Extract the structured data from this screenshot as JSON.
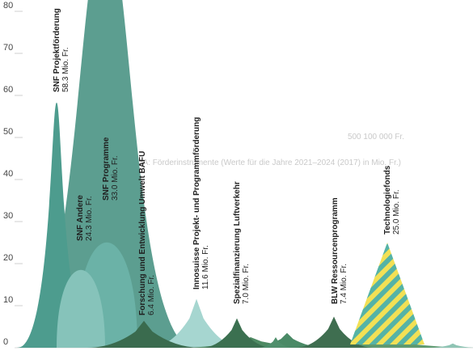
{
  "chart_data": {
    "type": "area",
    "title": "",
    "xlabel": "",
    "ylabel": "",
    "ylim": [
      0,
      85
    ],
    "yticks": [
      0,
      10,
      20,
      30,
      40,
      50,
      60,
      70,
      80
    ],
    "grid": false,
    "legend": "none",
    "background_text": {
      "legend_value": "500 100 000 Fr.",
      "caption": "2A: Förderinstrumente (Werte für die Jahre 2021–2024 (2017) in Mio. Fr.)"
    },
    "series": [
      {
        "name": "SNF Projektförderung",
        "value_label": "58.3 Mio. Fr.",
        "value": 58.3,
        "color": "#4d9c8e"
      },
      {
        "name": "SNF Andere",
        "value_label": "24.3 Mio. Fr.",
        "value": 24.3,
        "color": "#86c3ba"
      },
      {
        "name": "SNF Programme",
        "value_label": "33.0 Mio. Fr.",
        "value": 33.0,
        "color": "#6bb2a7"
      },
      {
        "name": "Forschung und Entwicklung Umwelt BAFU",
        "value_label": "6.4 Mio. Fr.",
        "value": 6.4,
        "color": "#3a6b4e"
      },
      {
        "name": "Innosuisse Projekt- und Programmförderung",
        "value_label": "11.6 Mio. Fr.",
        "value": 11.6,
        "color": "#a6d6d0"
      },
      {
        "name": "Spezialfinanzierung Luftverkehr",
        "value_label": "7.0 Mio. Fr.",
        "value": 7.0,
        "color": "#3b7050"
      },
      {
        "name": "BLW Ressourcenprogramm",
        "value_label": "7.4 Mio. Fr.",
        "value": 7.4,
        "color": "#3f6e50"
      },
      {
        "name": "Technologiefonds",
        "value_label": "25.0 Mio. Fr.",
        "value": 25.0,
        "color": "#f2e055",
        "stripe_color": "#55b3a6"
      }
    ],
    "unlabeled_series": [
      {
        "value": 100,
        "color": "#5c9e90"
      },
      {
        "value": 2.5,
        "color": "#4e8a63"
      },
      {
        "value": 2.0,
        "color": "#5f9a70"
      },
      {
        "value": 3.5,
        "color": "#4a8a66"
      },
      {
        "value": 2.5,
        "color": "#4f8f6c"
      },
      {
        "value": 1.0,
        "color": "#8fc4b4"
      }
    ]
  }
}
